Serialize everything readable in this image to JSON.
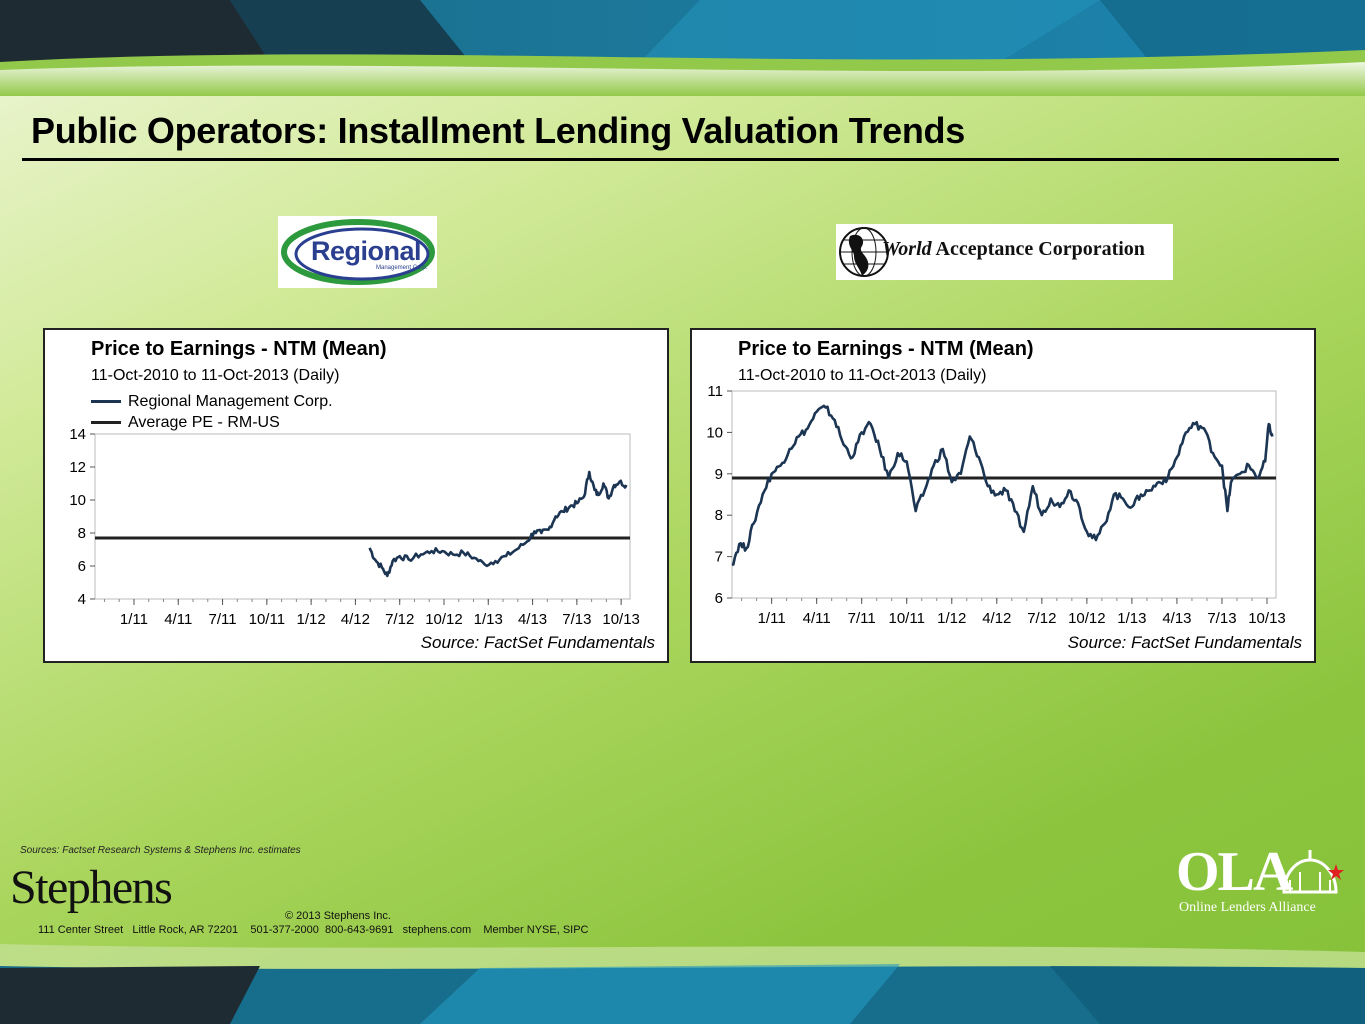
{
  "slide": {
    "title": "Public Operators: Installment Lending Valuation Trends",
    "sources_note": "Sources:  Factset Research Systems & Stephens Inc. estimates"
  },
  "logos": {
    "regional": {
      "text": "Regional",
      "subtext": "Management Corp."
    },
    "world": {
      "text_italic": "World",
      "text_rest": " Acceptance Corporation"
    }
  },
  "footer": {
    "brand": "Stephens",
    "copyright": "© 2013 Stephens Inc.",
    "address": "111 Center Street   Little Rock, AR 72201    501-377-2000  800-643-9691   stephens.com    Member NYSE, SIPC",
    "ola_name": "OLA",
    "ola_sub": "Online Lenders Alliance"
  },
  "colors": {
    "series": "#1b3553",
    "average": "#222222",
    "ola_star": "#e02020"
  },
  "chart_data": [
    {
      "type": "line",
      "title": "Price to Earnings - NTM (Mean)",
      "subtitle": "11-Oct-2010 to 11-Oct-2013 (Daily)",
      "source": "Source: FactSet Fundamentals",
      "legend": [
        "Regional Management Corp.",
        "Average PE - RM-US"
      ],
      "x_tick_labels": [
        "1/11",
        "4/11",
        "7/11",
        "10/11",
        "1/12",
        "4/12",
        "7/12",
        "10/12",
        "1/13",
        "4/13",
        "7/13",
        "10/13"
      ],
      "x_ticks": [
        2011.0,
        2011.25,
        2011.5,
        2011.75,
        2012.0,
        2012.25,
        2012.5,
        2012.75,
        2013.0,
        2013.25,
        2013.5,
        2013.75
      ],
      "xlim": [
        2010.78,
        2013.8
      ],
      "ylim": [
        4,
        14
      ],
      "y_ticks": [
        4,
        6,
        8,
        10,
        12,
        14
      ],
      "average": 7.7,
      "series": [
        {
          "name": "Regional Management Corp.",
          "x": [
            2012.33,
            2012.36,
            2012.4,
            2012.43,
            2012.46,
            2012.5,
            2012.55,
            2012.62,
            2012.68,
            2012.74,
            2012.8,
            2012.86,
            2012.92,
            2012.98,
            2013.04,
            2013.1,
            2013.16,
            2013.22,
            2013.26,
            2013.3,
            2013.34,
            2013.38,
            2013.42,
            2013.46,
            2013.5,
            2013.54,
            2013.57,
            2013.6,
            2013.62,
            2013.65,
            2013.68,
            2013.71,
            2013.74,
            2013.78
          ],
          "values": [
            7.1,
            6.4,
            5.9,
            5.4,
            6.3,
            6.6,
            6.4,
            6.7,
            6.9,
            6.9,
            6.7,
            6.8,
            6.5,
            6.1,
            6.3,
            6.6,
            7.0,
            7.5,
            8.1,
            8.0,
            8.2,
            9.0,
            9.3,
            9.6,
            9.8,
            10.2,
            11.7,
            10.6,
            10.3,
            11.0,
            10.1,
            10.9,
            11.1,
            10.9
          ]
        }
      ],
      "grid": false
    },
    {
      "type": "line",
      "title": "Price to Earnings - NTM (Mean)",
      "subtitle": "11-Oct-2010 to 11-Oct-2013 (Daily)",
      "source": "Source: FactSet Fundamentals",
      "x_tick_labels": [
        "1/11",
        "4/11",
        "7/11",
        "10/11",
        "1/12",
        "4/12",
        "7/12",
        "10/12",
        "1/13",
        "4/13",
        "7/13",
        "10/13"
      ],
      "x_ticks": [
        2011.0,
        2011.25,
        2011.5,
        2011.75,
        2012.0,
        2012.25,
        2012.5,
        2012.75,
        2013.0,
        2013.25,
        2013.5,
        2013.75
      ],
      "xlim": [
        2010.78,
        2013.8
      ],
      "ylim": [
        6,
        11
      ],
      "y_ticks": [
        6,
        7,
        8,
        9,
        10,
        11
      ],
      "average": 8.9,
      "series": [
        {
          "name": "World Acceptance Corp.",
          "x": [
            2010.78,
            2010.82,
            2010.86,
            2010.9,
            2010.95,
            2011.0,
            2011.05,
            2011.1,
            2011.15,
            2011.2,
            2011.25,
            2011.3,
            2011.35,
            2011.4,
            2011.45,
            2011.5,
            2011.55,
            2011.6,
            2011.65,
            2011.7,
            2011.75,
            2011.8,
            2011.85,
            2011.9,
            2011.95,
            2012.0,
            2012.05,
            2012.1,
            2012.15,
            2012.2,
            2012.25,
            2012.3,
            2012.35,
            2012.4,
            2012.45,
            2012.5,
            2012.55,
            2012.6,
            2012.65,
            2012.7,
            2012.75,
            2012.8,
            2012.85,
            2012.9,
            2012.95,
            2013.0,
            2013.05,
            2013.1,
            2013.15,
            2013.2,
            2013.25,
            2013.3,
            2013.35,
            2013.4,
            2013.45,
            2013.5,
            2013.53,
            2013.55,
            2013.6,
            2013.65,
            2013.7,
            2013.74,
            2013.76,
            2013.78
          ],
          "values": [
            6.8,
            7.3,
            7.2,
            7.8,
            8.5,
            9.0,
            9.2,
            9.6,
            9.9,
            10.1,
            10.5,
            10.6,
            10.3,
            9.7,
            9.4,
            10.0,
            10.2,
            9.6,
            8.9,
            9.5,
            9.3,
            8.1,
            8.6,
            9.2,
            9.6,
            8.8,
            9.0,
            9.9,
            9.4,
            8.7,
            8.5,
            8.6,
            8.1,
            7.6,
            8.7,
            8.0,
            8.4,
            8.2,
            8.6,
            8.3,
            7.6,
            7.4,
            7.8,
            8.5,
            8.4,
            8.2,
            8.5,
            8.6,
            8.8,
            8.9,
            9.4,
            10.0,
            10.2,
            10.1,
            9.5,
            9.2,
            8.1,
            8.8,
            9.0,
            9.2,
            8.9,
            9.3,
            10.2,
            9.9
          ]
        }
      ],
      "grid": false
    }
  ]
}
